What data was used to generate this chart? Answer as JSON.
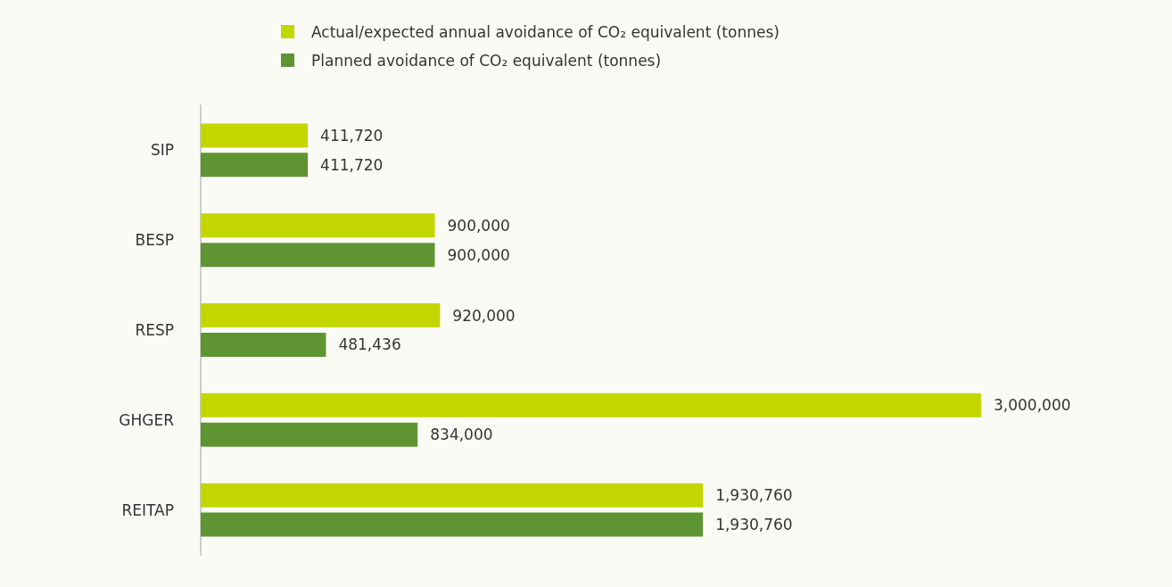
{
  "chart_data": {
    "type": "bar",
    "orientation": "horizontal",
    "categories": [
      "SIP",
      "BESP",
      "RESP",
      "GHGER",
      "REITAP"
    ],
    "series": [
      {
        "name": "Actual/expected annual avoidance of CO₂ equivalent (tonnes)",
        "color": "#c4d600",
        "values": [
          411720,
          900000,
          920000,
          3000000,
          1930760
        ],
        "value_labels": [
          "411,720",
          "900,000",
          "920,000",
          "3,000,000",
          "1,930,760"
        ]
      },
      {
        "name": "Planned avoidance of CO₂ equivalent (tonnes)",
        "color": "#5e9432",
        "values": [
          411720,
          900000,
          481436,
          834000,
          1930760
        ],
        "value_labels": [
          "411,720",
          "900,000",
          "481,436",
          "834,000",
          "1,930,760"
        ]
      }
    ],
    "legend": "top"
  }
}
